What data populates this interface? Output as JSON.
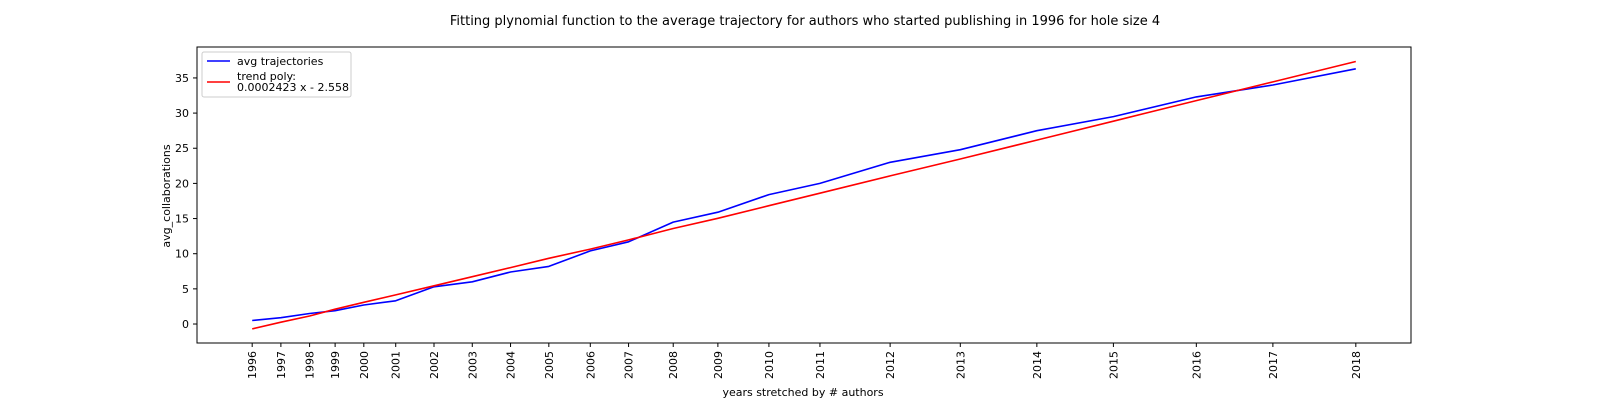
{
  "chart_data": {
    "type": "line",
    "title": "Fitting plynomial function to the average trajectory for authors who started publishing in 1996 for hole size 4",
    "xlabel": "years stretched by # authors",
    "ylabel": "avg_collaborations",
    "x_tick_labels": [
      "1996",
      "1997",
      "1998",
      "1999",
      "2000",
      "2001",
      "2002",
      "2003",
      "2004",
      "2005",
      "2006",
      "2007",
      "2008",
      "2009",
      "2010",
      "2011",
      "2012",
      "2013",
      "2014",
      "2015",
      "2016",
      "2017",
      "2018"
    ],
    "x": [
      0,
      9,
      18,
      26,
      35,
      45,
      57,
      69,
      81,
      93,
      106,
      118,
      132,
      146,
      162,
      178,
      200,
      222,
      246,
      270,
      296,
      320,
      346
    ],
    "y_ticks": [
      0,
      5,
      10,
      15,
      20,
      25,
      30,
      35
    ],
    "xlim": [
      -17.3,
      363.3
    ],
    "ylim": [
      -2.7,
      39.4
    ],
    "grid": false,
    "legend_position": "upper-left",
    "series": [
      {
        "name": "avg trajectories",
        "color": "#0000ff",
        "values": [
          0.5,
          0.9,
          1.5,
          1.9,
          2.7,
          3.3,
          5.3,
          6.0,
          7.4,
          8.2,
          10.4,
          11.7,
          14.5,
          15.9,
          18.4,
          20.0,
          23.0,
          24.8,
          27.5,
          29.5,
          32.3,
          34.0,
          36.3
        ]
      },
      {
        "name": "trend poly:",
        "name_line2": "0.0002423 x - 2.558",
        "color": "#ff0000",
        "values": [
          -0.7,
          0.26,
          1.14,
          2.11,
          3.09,
          4.14,
          5.43,
          6.73,
          8.02,
          9.34,
          10.66,
          11.97,
          13.58,
          15.04,
          16.83,
          18.6,
          21.06,
          23.47,
          26.16,
          28.84,
          31.77,
          34.44,
          37.34
        ]
      }
    ]
  }
}
